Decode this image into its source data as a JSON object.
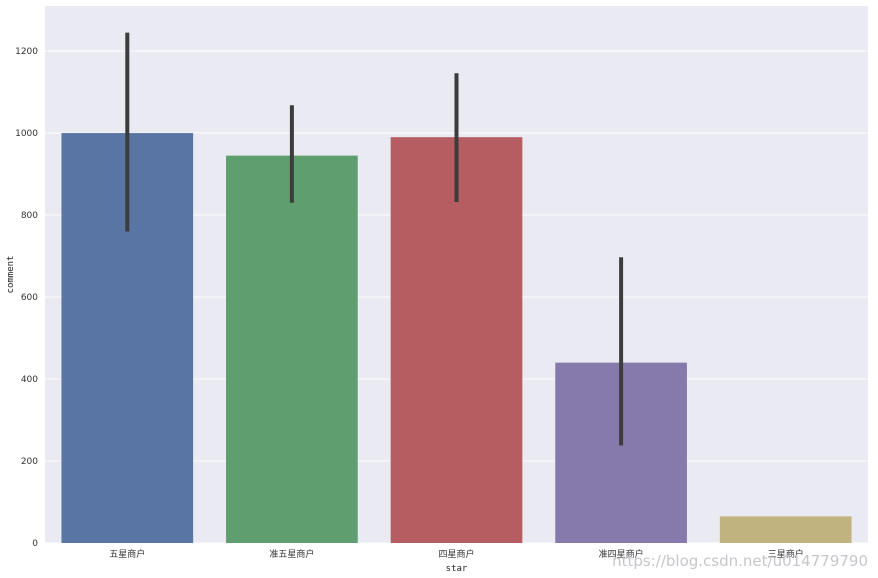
{
  "chart_data": {
    "type": "bar",
    "title": "",
    "xlabel": "star",
    "ylabel": "comment",
    "categories": [
      "五星商户",
      "准五星商户",
      "四星商户",
      "准四星商户",
      "三星商户"
    ],
    "values": [
      1000,
      945,
      990,
      440,
      65
    ],
    "error_bars": [
      {
        "low": 760,
        "high": 1245
      },
      {
        "low": 830,
        "high": 1068
      },
      {
        "low": 832,
        "high": 1146
      },
      {
        "low": 238,
        "high": 697
      },
      {
        "low": 65,
        "high": 65
      }
    ],
    "ylim": [
      0,
      1310
    ],
    "yticks": [
      0,
      200,
      400,
      600,
      800,
      1000,
      1200
    ],
    "colors": [
      "#5975a4",
      "#5f9e6e",
      "#b55d60",
      "#857aab",
      "#c1b37f"
    ],
    "background": "#eaeaf2",
    "grid": true,
    "error_color": "#3c3c3c"
  },
  "watermark": "https://blog.csdn.net/u014779790"
}
